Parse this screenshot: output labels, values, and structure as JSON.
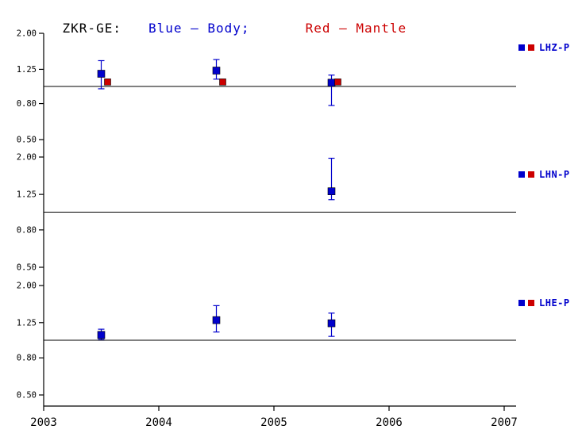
{
  "title": {
    "station": "ZKR-GE:",
    "blue_label": "Blue — Body;",
    "red_label": "Red — Mantle"
  },
  "colors": {
    "blue": "#0000cc",
    "red": "#cc0000",
    "axis": "#000000",
    "background": "#ffffff"
  },
  "chart_data": {
    "type": "scatter",
    "title": "ZKR-GE: Blue — Body; Red — Mantle",
    "x_axis": {
      "ticks": [
        2003,
        2004,
        2005,
        2006,
        2007
      ],
      "range": [
        2003,
        2007.1
      ]
    },
    "y_scale": "log",
    "y_range": [
      0.5,
      2.0
    ],
    "y_ticks": [
      "2.00",
      "1.25",
      "0.80",
      "0.50"
    ],
    "reference_line": 1.0,
    "grid": false,
    "legend_position": "right",
    "panels": [
      {
        "label": "LHZ-P",
        "series": [
          {
            "name": "Body",
            "color_key": "blue",
            "points": [
              {
                "x": 2003.5,
                "y": 1.18,
                "lo": 0.97,
                "hi": 1.4
              },
              {
                "x": 2004.5,
                "y": 1.23,
                "lo": 1.1,
                "hi": 1.42
              },
              {
                "x": 2005.5,
                "y": 1.05,
                "lo": 0.78,
                "hi": 1.16
              }
            ]
          },
          {
            "name": "Mantle",
            "color_key": "red",
            "points": [
              {
                "x": 2003.5,
                "y": 1.06
              },
              {
                "x": 2004.5,
                "y": 1.06
              },
              {
                "x": 2005.5,
                "y": 1.06
              }
            ]
          }
        ]
      },
      {
        "label": "LHN-P",
        "series": [
          {
            "name": "Body",
            "color_key": "blue",
            "points": [
              {
                "x": 2005.5,
                "y": 1.3,
                "lo": 1.17,
                "hi": 1.97
              }
            ]
          },
          {
            "name": "Mantle",
            "color_key": "red",
            "points": []
          }
        ]
      },
      {
        "label": "LHE-P",
        "series": [
          {
            "name": "Body",
            "color_key": "blue",
            "points": [
              {
                "x": 2003.5,
                "y": 1.07,
                "lo": 1.01,
                "hi": 1.15
              },
              {
                "x": 2004.5,
                "y": 1.29,
                "lo": 1.11,
                "hi": 1.55
              },
              {
                "x": 2005.5,
                "y": 1.24,
                "lo": 1.05,
                "hi": 1.41
              }
            ]
          },
          {
            "name": "Mantle",
            "color_key": "red",
            "points": []
          }
        ]
      }
    ]
  }
}
